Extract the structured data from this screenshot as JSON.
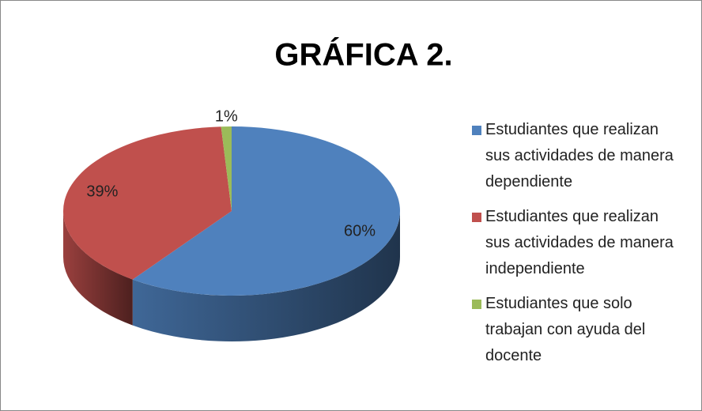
{
  "chart_data": {
    "type": "pie",
    "title": "GRÁFICA 2.",
    "categories": [
      "Estudiantes que realizan sus actividades de manera dependiente",
      "Estudiantes que realizan sus actividades de manera independiente",
      "Estudiantes que solo trabajan con ayuda del docente"
    ],
    "values": [
      60,
      39,
      1
    ],
    "value_labels": [
      "60%",
      "39%",
      "1%"
    ],
    "colors": [
      "#4f81bd",
      "#c0504d",
      "#9bbb59"
    ],
    "legend": "right"
  }
}
